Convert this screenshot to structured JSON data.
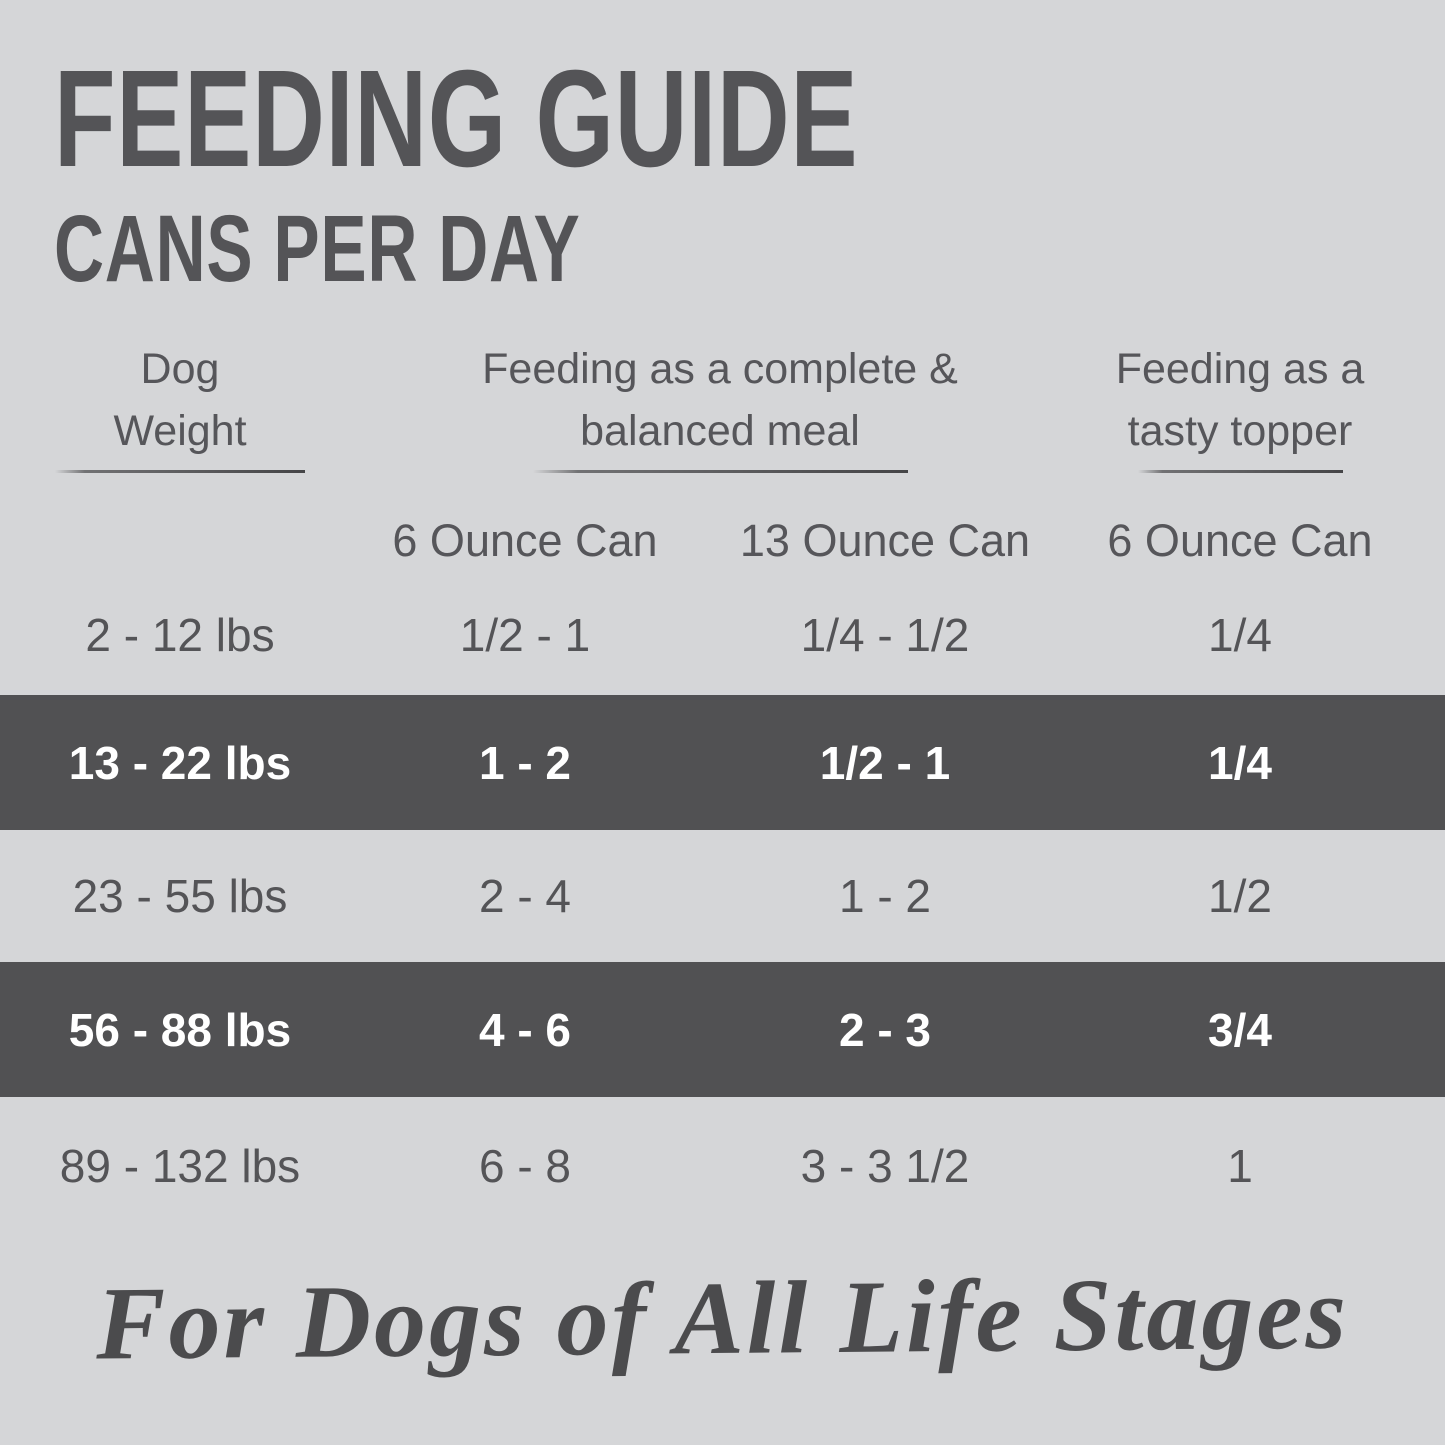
{
  "title": "FEEDING GUIDE",
  "subtitle": "CANS PER DAY",
  "colors": {
    "background": "#d5d6d8",
    "highlight_band": "#515153",
    "text": "#545457",
    "highlight_text": "#ffffff"
  },
  "table": {
    "column_groups": [
      {
        "line1": "Dog",
        "line2": "Weight"
      },
      {
        "line1": "Feeding as a complete &",
        "line2": "balanced meal"
      },
      {
        "line1": "Feeding as a",
        "line2": "tasty topper"
      }
    ],
    "sub_headers": {
      "meal_6oz": "6 Ounce Can",
      "meal_13oz": "13 Ounce Can",
      "topper_6oz": "6 Ounce Can"
    },
    "rows": [
      {
        "weight": "2 - 12 lbs",
        "meal_6oz": "1/2 - 1",
        "meal_13oz": "1/4 - 1/2",
        "topper_6oz": "1/4",
        "highlighted": false
      },
      {
        "weight": "13 - 22 lbs",
        "meal_6oz": "1 - 2",
        "meal_13oz": "1/2 - 1",
        "topper_6oz": "1/4",
        "highlighted": true
      },
      {
        "weight": "23 - 55 lbs",
        "meal_6oz": "2 - 4",
        "meal_13oz": "1 - 2",
        "topper_6oz": "1/2",
        "highlighted": false
      },
      {
        "weight": "56 - 88 lbs",
        "meal_6oz": "4 - 6",
        "meal_13oz": "2 - 3",
        "topper_6oz": "3/4",
        "highlighted": true
      },
      {
        "weight": "89 - 132 lbs",
        "meal_6oz": "6 - 8",
        "meal_13oz": "3 - 3 1/2",
        "topper_6oz": "1",
        "highlighted": false
      }
    ]
  },
  "footer_tagline": "For Dogs of All Life Stages"
}
